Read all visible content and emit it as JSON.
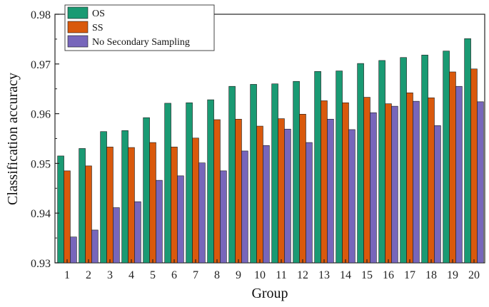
{
  "chart_data": {
    "type": "bar",
    "title": "",
    "xlabel": "Group",
    "ylabel": "Classification accuracy",
    "ylim": [
      0.93,
      0.98
    ],
    "yticks": [
      "0.93",
      "0.94",
      "0.95",
      "0.96",
      "0.97",
      "0.98"
    ],
    "categories": [
      "1",
      "2",
      "3",
      "4",
      "5",
      "6",
      "7",
      "8",
      "9",
      "10",
      "11",
      "12",
      "13",
      "14",
      "15",
      "16",
      "17",
      "18",
      "19",
      "20"
    ],
    "legend_position": "top-left",
    "grid": false,
    "series": [
      {
        "name": "OS",
        "color": "#1a9a73",
        "values": [
          0.9515,
          0.953,
          0.9564,
          0.9566,
          0.9592,
          0.9621,
          0.9622,
          0.9628,
          0.9655,
          0.9659,
          0.966,
          0.9665,
          0.9685,
          0.9686,
          0.9701,
          0.9707,
          0.9713,
          0.9718,
          0.9726,
          0.9751
        ]
      },
      {
        "name": "SS",
        "color": "#d9590c",
        "values": [
          0.9485,
          0.9495,
          0.9533,
          0.9532,
          0.9542,
          0.9533,
          0.9551,
          0.9588,
          0.9589,
          0.9575,
          0.959,
          0.9599,
          0.9626,
          0.9622,
          0.9633,
          0.962,
          0.9642,
          0.9632,
          0.9684,
          0.969
        ]
      },
      {
        "name": "No Secondary Sampling",
        "color": "#7766bb",
        "values": [
          0.9352,
          0.9366,
          0.9411,
          0.9423,
          0.9466,
          0.9475,
          0.9501,
          0.9485,
          0.9525,
          0.9536,
          0.9569,
          0.9542,
          0.9589,
          0.9568,
          0.9602,
          0.9615,
          0.9625,
          0.9576,
          0.9655,
          0.9624
        ]
      }
    ]
  }
}
